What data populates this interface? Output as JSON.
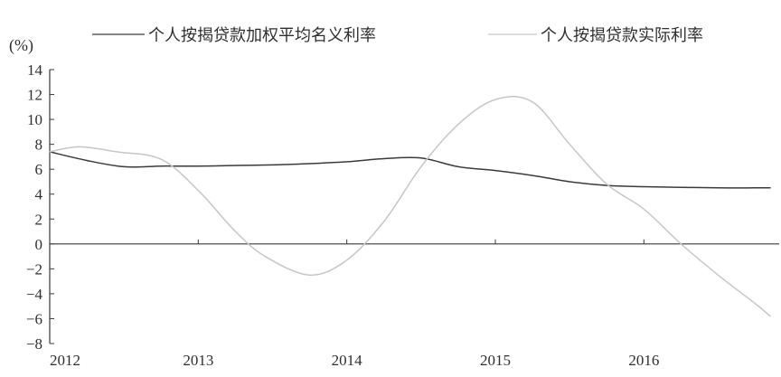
{
  "chart_data": {
    "type": "line",
    "title": "",
    "ylabel": "(%)",
    "xlabel": "",
    "ylim": [
      -8,
      14
    ],
    "yticks": [
      14,
      12,
      10,
      8,
      6,
      4,
      2,
      0,
      -2,
      -4,
      -6,
      -8
    ],
    "xlim": [
      2012,
      2016.85
    ],
    "xticks": [
      2012,
      2013,
      2014,
      2015,
      2016
    ],
    "legend": [
      "个人按揭贷款加权平均名义利率",
      "个人按揭贷款实际利率"
    ],
    "colors": {
      "nominal": "#3a3a3a",
      "real": "#c6c6c6",
      "axis": "#3a3a3a"
    },
    "series": [
      {
        "name": "个人按揭贷款加权平均名义利率",
        "style": "dark",
        "x": [
          2012.0,
          2012.25,
          2012.5,
          2012.75,
          2013.0,
          2013.25,
          2013.5,
          2013.75,
          2014.0,
          2014.25,
          2014.5,
          2014.75,
          2015.0,
          2015.25,
          2015.5,
          2015.75,
          2016.0,
          2016.25,
          2016.5,
          2016.75,
          2016.85
        ],
        "values": [
          7.4,
          6.7,
          6.2,
          6.25,
          6.25,
          6.3,
          6.35,
          6.45,
          6.6,
          6.85,
          6.9,
          6.2,
          5.9,
          5.5,
          5.0,
          4.7,
          4.6,
          4.55,
          4.5,
          4.5,
          4.5
        ]
      },
      {
        "name": "个人按揭贷款实际利率",
        "style": "light",
        "x": [
          2012.0,
          2012.2,
          2012.45,
          2012.75,
          2013.0,
          2013.25,
          2013.45,
          2013.75,
          2014.0,
          2014.25,
          2014.5,
          2014.75,
          2015.0,
          2015.25,
          2015.5,
          2015.75,
          2016.0,
          2016.25,
          2016.5,
          2016.75,
          2016.85
        ],
        "values": [
          7.4,
          7.8,
          7.4,
          6.8,
          4.3,
          1.0,
          -1.0,
          -2.5,
          -1.3,
          1.8,
          6.2,
          9.6,
          11.6,
          11.4,
          8.0,
          4.8,
          2.8,
          0.0,
          -2.5,
          -4.8,
          -5.8
        ]
      }
    ]
  }
}
